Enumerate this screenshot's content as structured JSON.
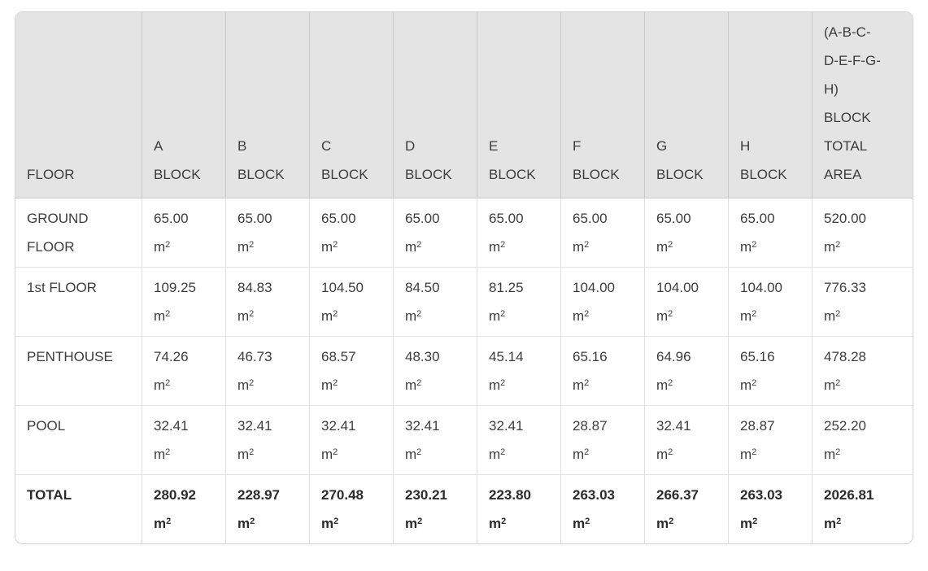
{
  "chart_data": {
    "type": "table",
    "unit": {
      "base": "m",
      "exponent": "2"
    },
    "columns": [
      {
        "id": "floor",
        "label": "FLOOR"
      },
      {
        "id": "a-block",
        "label": "A\nBLOCK"
      },
      {
        "id": "b-block",
        "label": "B\nBLOCK"
      },
      {
        "id": "c-block",
        "label": "C\nBLOCK"
      },
      {
        "id": "d-block",
        "label": "D\nBLOCK"
      },
      {
        "id": "e-block",
        "label": "E\nBLOCK"
      },
      {
        "id": "f-block",
        "label": "F\nBLOCK"
      },
      {
        "id": "g-block",
        "label": "G\nBLOCK"
      },
      {
        "id": "h-block",
        "label": "H\nBLOCK"
      },
      {
        "id": "block-total-area",
        "label": "(A-B-C-\nD-E-F-G-\nH)\nBLOCK\nTOTAL\nAREA"
      }
    ],
    "rows": [
      {
        "id": "ground-floor",
        "label": "GROUND\nFLOOR",
        "bold": false,
        "values": [
          "65.00",
          "65.00",
          "65.00",
          "65.00",
          "65.00",
          "65.00",
          "65.00",
          "65.00",
          "520.00"
        ]
      },
      {
        "id": "1st-floor",
        "label": "1st FLOOR",
        "bold": false,
        "values": [
          "109.25",
          "84.83",
          "104.50",
          "84.50",
          "81.25",
          "104.00",
          "104.00",
          "104.00",
          "776.33"
        ]
      },
      {
        "id": "penthouse",
        "label": "PENTHOUSE",
        "bold": false,
        "values": [
          "74.26",
          "46.73",
          "68.57",
          "48.30",
          "45.14",
          "65.16",
          "64.96",
          "65.16",
          "478.28"
        ]
      },
      {
        "id": "pool",
        "label": "POOL",
        "bold": false,
        "values": [
          "32.41",
          "32.41",
          "32.41",
          "32.41",
          "32.41",
          "28.87",
          "32.41",
          "28.87",
          "252.20"
        ]
      },
      {
        "id": "total",
        "label": "TOTAL",
        "bold": true,
        "values": [
          "280.92",
          "228.97",
          "270.48",
          "230.21",
          "223.80",
          "263.03",
          "266.37",
          "263.03",
          "2026.81"
        ]
      }
    ]
  },
  "colors": {
    "header_bg": "#e4e4e4",
    "border_outer": "#d5d5d5",
    "border_header": "#c8c8c8",
    "border_cell": "#e0e0e0",
    "border_row": "#e5e5e5",
    "text": "#3d3d3d",
    "text_bold": "#2b2b2b",
    "body_bg": "#ffffff"
  }
}
